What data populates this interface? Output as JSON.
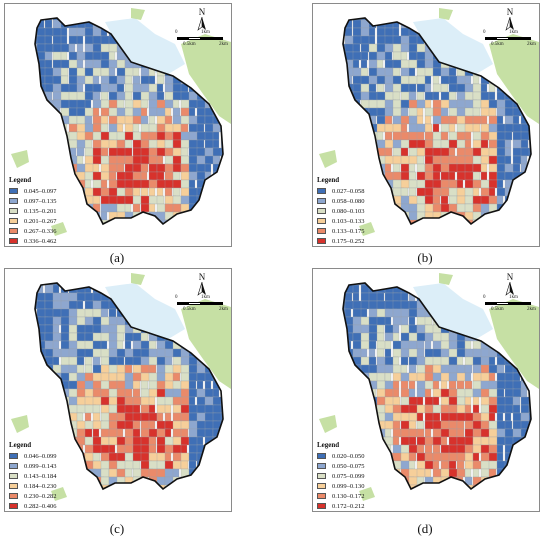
{
  "colors": {
    "class1": "#3f6fb6",
    "class2": "#8ea7cf",
    "class3": "#d9dfc6",
    "class4": "#f6cf9a",
    "class5": "#ea8a6a",
    "class6": "#d7322c",
    "water": "#dceef8",
    "vegetation": "#c6e0a4",
    "boundary": "#111111"
  },
  "map_common": {
    "north_label": "N",
    "scale_0": "0",
    "scale_1": "1km",
    "scale_05": "0.5km",
    "scale_2": "2km",
    "legend_title": "Legend"
  },
  "panels": [
    {
      "id": "a",
      "caption": "(a)",
      "legend": [
        "0.045–0.097",
        "0.097–0.135",
        "0.135–0.201",
        "0.201–0.267",
        "0.267–0.336",
        "0.336–0.462"
      ]
    },
    {
      "id": "b",
      "caption": "(b)",
      "legend": [
        "0.027–0.058",
        "0.058–0.080",
        "0.080–0.103",
        "0.103–0.133",
        "0.133–0.175",
        "0.175–0.252"
      ]
    },
    {
      "id": "c",
      "caption": "(c)",
      "legend": [
        "0.046–0.099",
        "0.099–0.143",
        "0.143–0.184",
        "0.184–0.230",
        "0.230–0.282",
        "0.282–0.406"
      ]
    },
    {
      "id": "d",
      "caption": "(d)",
      "legend": [
        "0.020–0.050",
        "0.050–0.075",
        "0.075–0.099",
        "0.099–0.130",
        "0.130–0.172",
        "0.172–0.212"
      ]
    }
  ]
}
